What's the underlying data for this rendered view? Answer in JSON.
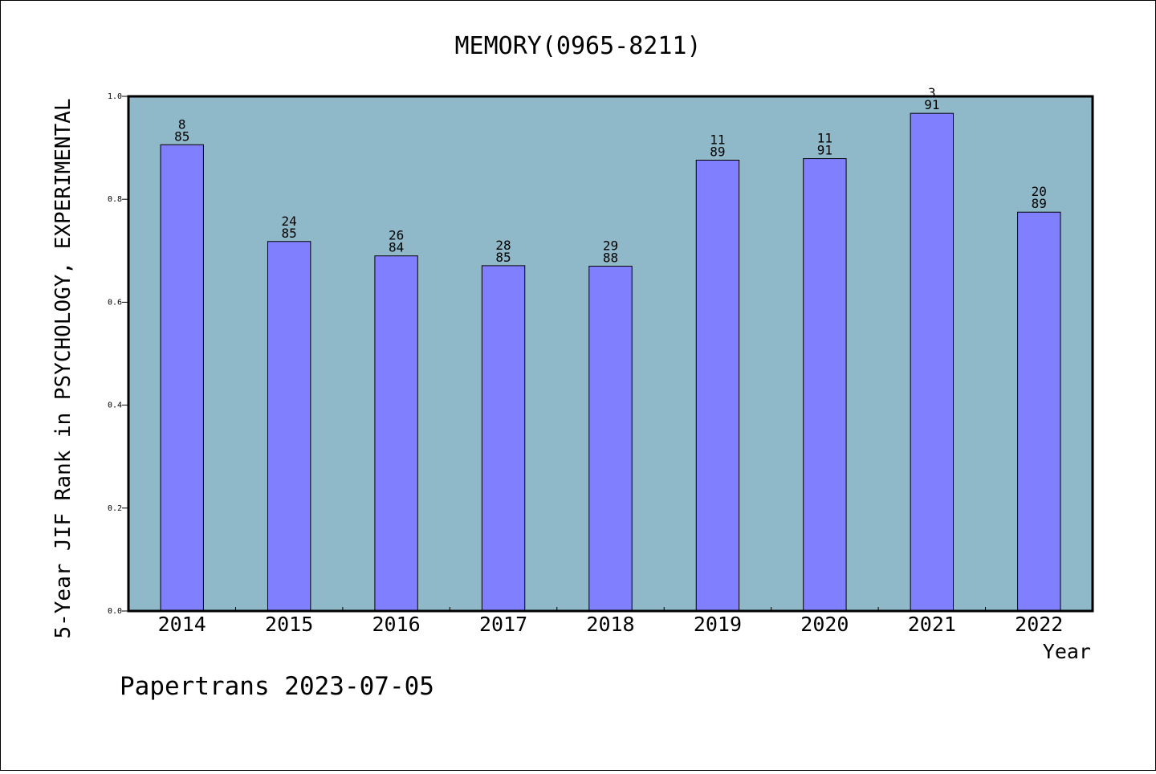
{
  "chart_data": {
    "type": "bar",
    "title": "MEMORY(0965-8211)",
    "xlabel": "Year",
    "ylabel": "5-Year JIF Rank in PSYCHOLOGY, EXPERIMENTAL",
    "ylim": [
      0,
      1.0
    ],
    "yticks": [
      "0.0",
      "0.2",
      "0.4",
      "0.6",
      "0.8",
      "1.0"
    ],
    "categories": [
      "2014",
      "2015",
      "2016",
      "2017",
      "2018",
      "2019",
      "2020",
      "2021",
      "2022"
    ],
    "values": [
      0.906,
      0.718,
      0.69,
      0.671,
      0.67,
      0.876,
      0.879,
      0.967,
      0.775
    ],
    "rank": [
      "8",
      "24",
      "26",
      "28",
      "29",
      "11",
      "11",
      "3",
      "20"
    ],
    "total": [
      "85",
      "85",
      "84",
      "85",
      "88",
      "89",
      "91",
      "91",
      "89"
    ],
    "plot_background": "#8fb8c8",
    "bar_color": "#8080ff",
    "grid": false
  },
  "footer": "Papertrans 2023-07-05"
}
